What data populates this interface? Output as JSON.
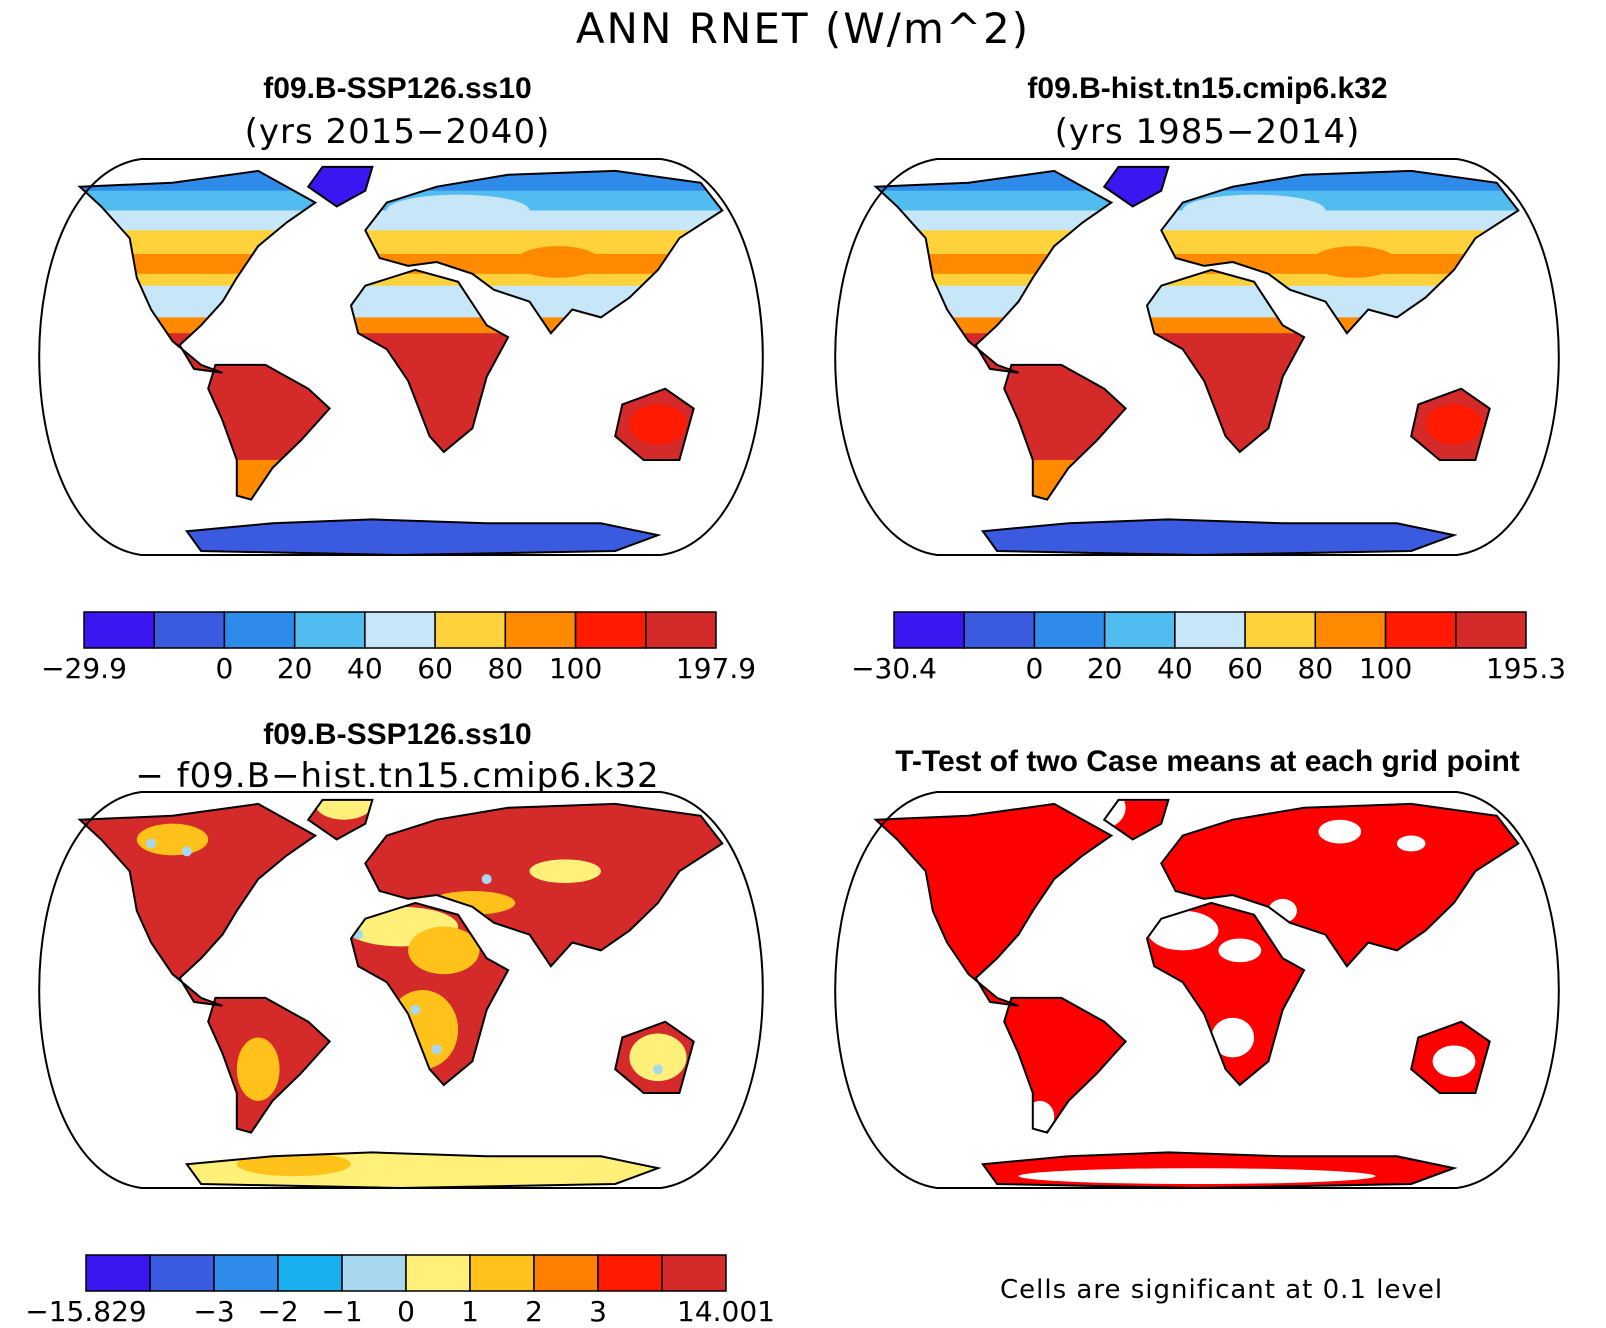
{
  "figure": {
    "title": "ANN RNET (W/m^2)"
  },
  "panels": [
    {
      "id": "case",
      "title": "f09.B-SSP126.ss10",
      "subtitle": "(yrs 2015−2040)",
      "colorbar": {
        "colors": [
          "#3a17f0",
          "#3a5be0",
          "#2f8bea",
          "#50bcf0",
          "#c7e6f8",
          "#ffd23c",
          "#ff8a00",
          "#ff1a00",
          "#d42a2a"
        ],
        "ticks": [
          {
            "boundary": 0,
            "label": "−29.9"
          },
          {
            "boundary": 2,
            "label": "0"
          },
          {
            "boundary": 3,
            "label": "20"
          },
          {
            "boundary": 4,
            "label": "40"
          },
          {
            "boundary": 5,
            "label": "60"
          },
          {
            "boundary": 6,
            "label": "80"
          },
          {
            "boundary": 7,
            "label": "100"
          },
          {
            "boundary": 9,
            "label": "197.9"
          }
        ]
      }
    },
    {
      "id": "control",
      "title": "f09.B-hist.tn15.cmip6.k32",
      "subtitle": "(yrs 1985−2014)",
      "colorbar": {
        "colors": [
          "#3a17f0",
          "#3a5be0",
          "#2f8bea",
          "#50bcf0",
          "#c7e6f8",
          "#ffd23c",
          "#ff8a00",
          "#ff1a00",
          "#d42a2a"
        ],
        "ticks": [
          {
            "boundary": 0,
            "label": "−30.4"
          },
          {
            "boundary": 2,
            "label": "0"
          },
          {
            "boundary": 3,
            "label": "20"
          },
          {
            "boundary": 4,
            "label": "40"
          },
          {
            "boundary": 5,
            "label": "60"
          },
          {
            "boundary": 6,
            "label": "80"
          },
          {
            "boundary": 7,
            "label": "100"
          },
          {
            "boundary": 9,
            "label": "195.3"
          }
        ]
      }
    },
    {
      "id": "diff",
      "title": "f09.B-SSP126.ss10",
      "subtitle": "− f09.B−hist.tn15.cmip6.k32",
      "colorbar": {
        "colors": [
          "#3a17f0",
          "#3a5be0",
          "#2f8bea",
          "#1ab0f0",
          "#a8d8f0",
          "#fff07a",
          "#ffc21a",
          "#ff8000",
          "#ff1a00",
          "#d42a2a"
        ],
        "ticks": [
          {
            "boundary": 0,
            "label": "−15.829"
          },
          {
            "boundary": 2,
            "label": "−3"
          },
          {
            "boundary": 3,
            "label": "−2"
          },
          {
            "boundary": 4,
            "label": "−1"
          },
          {
            "boundary": 5,
            "label": "0"
          },
          {
            "boundary": 6,
            "label": "1"
          },
          {
            "boundary": 7,
            "label": "2"
          },
          {
            "boundary": 8,
            "label": "3"
          },
          {
            "boundary": 10,
            "label": "14.001"
          }
        ]
      }
    },
    {
      "id": "ttest",
      "title": "T-Test of two Case means at each grid point",
      "note": "Cells are significant at 0.1 level",
      "significant_color": "#ff0000"
    }
  ]
}
